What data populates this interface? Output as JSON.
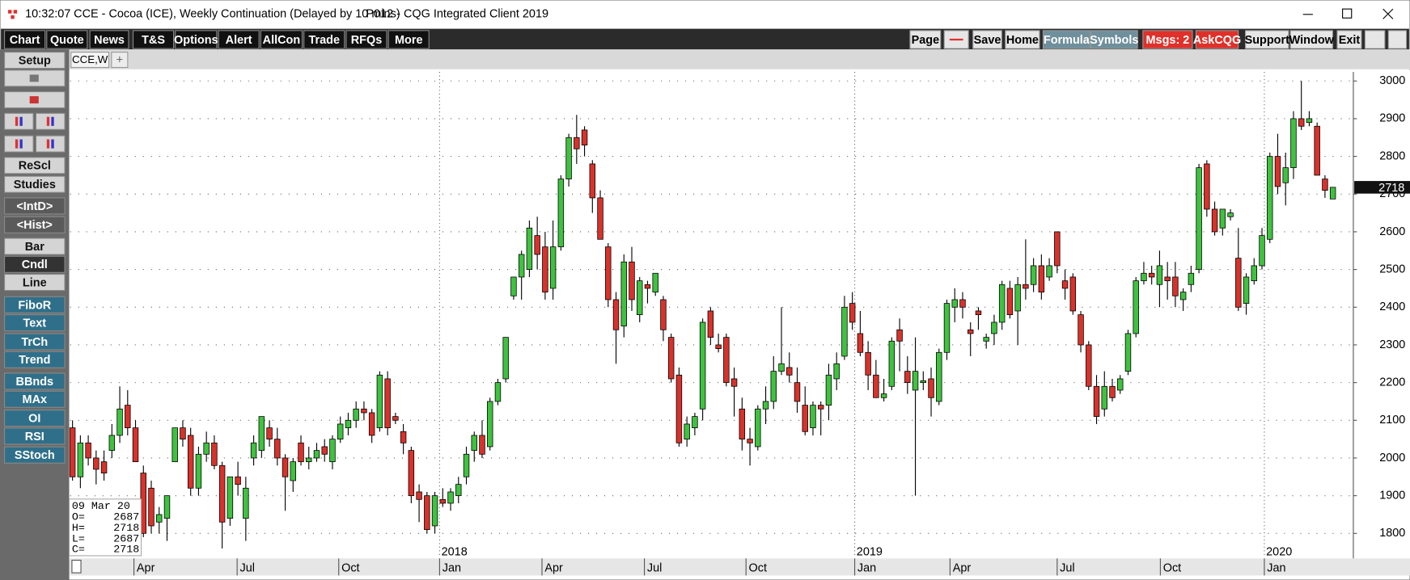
{
  "window": {
    "time": "10:32:07",
    "title": "CCE - Cocoa (ICE), Weekly Continuation (Delayed by 10 mins)",
    "client": "P012 - CQG Integrated Client 2019"
  },
  "toolbar": {
    "left": [
      "Chart",
      "Quote",
      "News",
      "T&S",
      "Options",
      "Alert",
      "AllCon",
      "Trade",
      "RFQs",
      "More"
    ],
    "right": [
      "Page",
      "Save",
      "Home",
      "Formula",
      "Symbols",
      "Msgs: 2",
      "AskCQG",
      "Support",
      "Window",
      "Exit"
    ]
  },
  "sidebar": [
    "Setup",
    "ReScl",
    "Studies",
    "<IntD>",
    "<Hist>",
    "Bar",
    "Cndl",
    "Line",
    "FiboR",
    "Text",
    "TrCh",
    "Trend",
    "BBnds",
    "MAx",
    "OI",
    "RSI",
    "SStoch"
  ],
  "tabs": [
    "CCE,W",
    "+"
  ],
  "chart_data": {
    "type": "candlestick",
    "open": [
      2080,
      1950,
      2040,
      2000,
      1990,
      2020,
      2060,
      2140,
      2080,
      1960,
      1920,
      1830,
      1840,
      1990,
      2080,
      2060,
      1920,
      2010,
      2040,
      1980,
      1840,
      1950,
      1840,
      2000,
      2020,
      2080,
      2050,
      2000,
      1940,
      2040,
      1990,
      2000,
      2030,
      1990,
      2050,
      2080,
      2100,
      2130,
      2120,
      2080,
      2210,
      2110,
      2070,
      2020,
      1910,
      1900,
      1820,
      1890,
      1880,
      1900,
      1950,
      2020,
      2060,
      2030,
      2150,
      2210,
      2430,
      2480,
      2500,
      2590,
      2560,
      2450,
      2560,
      2740,
      2850,
      2870,
      2780,
      2690,
      2560,
      2420,
      2350,
      2520,
      2380,
      2460,
      2440,
      2420,
      2320,
      2220,
      2050,
      2080,
      2130,
      2390,
      2300,
      2320,
      2210,
      2130,
      2050,
      2030,
      2130,
      2150,
      2230,
      2240,
      2200,
      2140,
      2080,
      2140,
      2140,
      2210,
      2270,
      2410,
      2330,
      2280,
      2220,
      2160,
      2190,
      2340,
      2230,
      2180,
      2200,
      2210,
      2150,
      2280,
      2400,
      2420,
      2340,
      2390,
      2310,
      2330,
      2360,
      2450,
      2390,
      2460,
      2460,
      2510,
      2480,
      2600,
      2470,
      2480,
      2380,
      2300,
      2190,
      2130,
      2190,
      2180,
      2230,
      2330,
      2470,
      2490,
      2460,
      2480,
      2480,
      2420,
      2460,
      2500,
      2780,
      2660,
      2610,
      2640,
      2530,
      2410,
      2470,
      2510,
      2580,
      2800,
      2730,
      2770,
      2900,
      2890,
      2880,
      2740,
      2687
    ],
    "high": [
      2100,
      2060,
      2060,
      2020,
      2020,
      2090,
      2190,
      2180,
      2100,
      1980,
      1940,
      1870,
      1900,
      2080,
      2100,
      2080,
      2030,
      2070,
      2060,
      1990,
      1950,
      1990,
      1950,
      2060,
      2110,
      2100,
      2080,
      2010,
      2000,
      2060,
      2030,
      2040,
      2050,
      2060,
      2110,
      2120,
      2150,
      2150,
      2130,
      2230,
      2230,
      2120,
      2090,
      2030,
      1930,
      1910,
      1910,
      1920,
      1920,
      1950,
      2030,
      2070,
      2100,
      2160,
      2210,
      2320,
      2480,
      2550,
      2630,
      2640,
      2600,
      2630,
      2750,
      2860,
      2910,
      2880,
      2790,
      2710,
      2570,
      2440,
      2540,
      2560,
      2480,
      2470,
      2490,
      2430,
      2330,
      2240,
      2110,
      2120,
      2370,
      2400,
      2330,
      2330,
      2240,
      2160,
      2080,
      2140,
      2190,
      2270,
      2400,
      2280,
      2240,
      2190,
      2150,
      2150,
      2250,
      2280,
      2430,
      2440,
      2390,
      2310,
      2260,
      2210,
      2320,
      2370,
      2270,
      2320,
      2230,
      2240,
      2290,
      2420,
      2450,
      2440,
      2360,
      2400,
      2330,
      2380,
      2470,
      2470,
      2480,
      2580,
      2530,
      2540,
      2530,
      2600,
      2500,
      2490,
      2390,
      2310,
      2220,
      2230,
      2210,
      2220,
      2340,
      2480,
      2520,
      2510,
      2550,
      2520,
      2520,
      2450,
      2510,
      2780,
      2790,
      2680,
      2660,
      2660,
      2610,
      2490,
      2530,
      2610,
      2810,
      2860,
      2810,
      2920,
      3000,
      2920,
      2890,
      2750,
      2718
    ],
    "low": [
      1940,
      1920,
      1980,
      1930,
      1940,
      2000,
      2040,
      2060,
      1990,
      1790,
      1800,
      1800,
      1780,
      1990,
      2030,
      1900,
      1900,
      1990,
      1970,
      1760,
      1820,
      1900,
      1780,
      1980,
      2000,
      2030,
      1980,
      1860,
      1910,
      1980,
      1970,
      1990,
      1990,
      1970,
      2040,
      2060,
      2080,
      2100,
      2040,
      2070,
      2060,
      2090,
      2010,
      1880,
      1830,
      1800,
      1800,
      1870,
      1860,
      1880,
      1930,
      1990,
      2000,
      2020,
      2140,
      2200,
      2420,
      2420,
      2480,
      2500,
      2420,
      2420,
      2550,
      2720,
      2780,
      2800,
      2650,
      2580,
      2400,
      2250,
      2320,
      2390,
      2360,
      2410,
      2430,
      2310,
      2200,
      2030,
      2030,
      2060,
      2100,
      2300,
      2280,
      2190,
      2110,
      2020,
      1980,
      2020,
      2090,
      2130,
      2220,
      2200,
      2120,
      2060,
      2060,
      2060,
      2100,
      2180,
      2260,
      2340,
      2270,
      2180,
      2160,
      2150,
      2180,
      2230,
      2170,
      1900,
      2180,
      2110,
      2140,
      2260,
      2360,
      2370,
      2270,
      2340,
      2290,
      2300,
      2340,
      2370,
      2300,
      2420,
      2440,
      2420,
      2470,
      2490,
      2420,
      2380,
      2280,
      2180,
      2090,
      2110,
      2150,
      2170,
      2220,
      2320,
      2460,
      2460,
      2400,
      2420,
      2400,
      2390,
      2440,
      2490,
      2640,
      2590,
      2590,
      2630,
      2390,
      2380,
      2460,
      2500,
      2570,
      2700,
      2670,
      2740,
      2870,
      2880,
      2750,
      2690,
      2687
    ],
    "close": [
      1950,
      2040,
      2000,
      1970,
      1960,
      2060,
      2130,
      2080,
      1990,
      1800,
      1820,
      1850,
      1900,
      2080,
      2050,
      1920,
      2010,
      2040,
      1980,
      1830,
      1950,
      1930,
      1920,
      2040,
      2110,
      2050,
      2000,
      1950,
      1990,
      1990,
      2000,
      2020,
      2010,
      2050,
      2090,
      2100,
      2130,
      2120,
      2060,
      2220,
      2080,
      2100,
      2040,
      1900,
      1890,
      1810,
      1900,
      1880,
      1910,
      1930,
      2010,
      2060,
      2010,
      2150,
      2200,
      2320,
      2480,
      2540,
      2610,
      2540,
      2440,
      2560,
      2740,
      2850,
      2820,
      2830,
      2690,
      2580,
      2420,
      2340,
      2520,
      2420,
      2470,
      2450,
      2490,
      2340,
      2210,
      2040,
      2090,
      2110,
      2360,
      2320,
      2290,
      2200,
      2190,
      2050,
      2040,
      2130,
      2150,
      2230,
      2250,
      2220,
      2150,
      2070,
      2140,
      2130,
      2220,
      2250,
      2400,
      2360,
      2280,
      2220,
      2160,
      2170,
      2310,
      2310,
      2200,
      2230,
      2205,
      2160,
      2280,
      2410,
      2420,
      2400,
      2330,
      2380,
      2320,
      2360,
      2460,
      2380,
      2460,
      2450,
      2510,
      2440,
      2510,
      2510,
      2450,
      2390,
      2300,
      2190,
      2110,
      2190,
      2160,
      2210,
      2330,
      2470,
      2490,
      2480,
      2510,
      2470,
      2430,
      2440,
      2490,
      2770,
      2660,
      2600,
      2660,
      2650,
      2400,
      2480,
      2510,
      2590,
      2800,
      2720,
      2770,
      2900,
      2880,
      2900,
      2750,
      2710,
      2718
    ],
    "up_color": "#3fc23f",
    "down_color": "#d8322b",
    "ylim": [
      1736,
      3024
    ],
    "yticks": [
      1800,
      1900,
      2000,
      2100,
      2200,
      2300,
      2400,
      2500,
      2600,
      2700,
      2800,
      2900,
      3000
    ],
    "xlim": [
      -0.3,
      162.6
    ],
    "xticks": [
      {
        "value": 7.8,
        "label": "Apr"
      },
      {
        "value": 20.9,
        "label": "Jul"
      },
      {
        "value": 33.8,
        "label": "Oct"
      },
      {
        "value": 46.6,
        "label": "Jan"
      },
      {
        "value": 59.6,
        "label": "Apr"
      },
      {
        "value": 72.6,
        "label": "Jul"
      },
      {
        "value": 85.5,
        "label": "Oct"
      },
      {
        "value": 99.3,
        "label": "Jan"
      },
      {
        "value": 111.4,
        "label": "Apr"
      },
      {
        "value": 125,
        "label": "Jul"
      },
      {
        "value": 138.1,
        "label": "Oct"
      },
      {
        "value": 151.3,
        "label": "Jan"
      }
    ],
    "year_ticks": [
      {
        "value": 46.6,
        "label": "2018"
      },
      {
        "value": 99.3,
        "label": "2019"
      },
      {
        "value": 151.3,
        "label": "2020"
      }
    ],
    "grid": true,
    "info_date": "09 Mar 20",
    "info_labels": [
      "O=",
      "H=",
      "L=",
      "C="
    ]
  }
}
